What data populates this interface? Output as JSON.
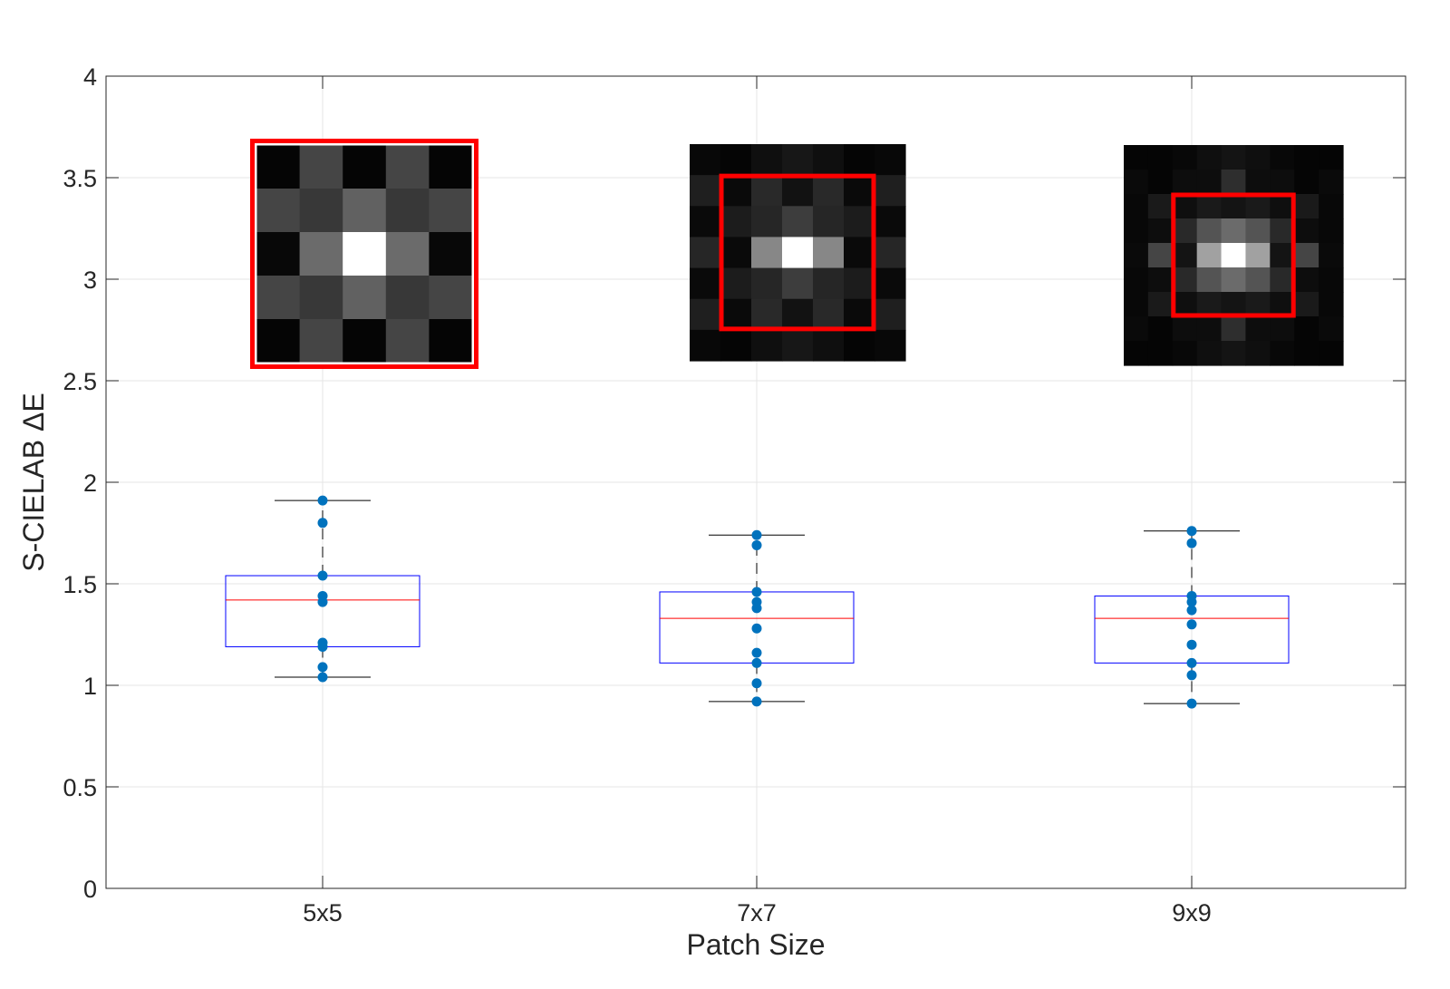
{
  "chart_data": {
    "type": "box",
    "xlabel": "Patch Size",
    "ylabel": "S-CIELAB ΔE",
    "ylim": [
      0,
      4
    ],
    "yticks": [
      0,
      0.5,
      1,
      1.5,
      2,
      2.5,
      3,
      3.5,
      4
    ],
    "ytick_labels": [
      "0",
      "0.5",
      "1",
      "1.5",
      "2",
      "2.5",
      "3",
      "3.5",
      "4"
    ],
    "grid": true,
    "categories": [
      "5x5",
      "7x7",
      "9x9"
    ],
    "boxes": [
      {
        "category": "5x5",
        "q1": 1.19,
        "median": 1.42,
        "q3": 1.54,
        "whisker_low": 1.04,
        "whisker_high": 1.91,
        "points": [
          1.91,
          1.8,
          1.54,
          1.44,
          1.41,
          1.21,
          1.19,
          1.09,
          1.04
        ]
      },
      {
        "category": "7x7",
        "q1": 1.11,
        "median": 1.33,
        "q3": 1.46,
        "whisker_low": 0.92,
        "whisker_high": 1.74,
        "points": [
          1.74,
          1.69,
          1.46,
          1.41,
          1.38,
          1.28,
          1.16,
          1.11,
          1.01,
          0.92
        ]
      },
      {
        "category": "9x9",
        "q1": 1.11,
        "median": 1.33,
        "q3": 1.44,
        "whisker_low": 0.91,
        "whisker_high": 1.76,
        "points": [
          1.76,
          1.7,
          1.44,
          1.41,
          1.37,
          1.3,
          1.2,
          1.11,
          1.05,
          0.91
        ]
      }
    ],
    "patches": [
      {
        "category": "5x5",
        "size": 5,
        "highlight_size": 5,
        "levels": [
          [
            0.02,
            0.27,
            0.02,
            0.27,
            0.02
          ],
          [
            0.27,
            0.22,
            0.38,
            0.22,
            0.27
          ],
          [
            0.03,
            0.42,
            1.0,
            0.42,
            0.03
          ],
          [
            0.27,
            0.22,
            0.38,
            0.22,
            0.27
          ],
          [
            0.02,
            0.27,
            0.02,
            0.27,
            0.02
          ]
        ]
      },
      {
        "category": "7x7",
        "size": 7,
        "highlight_size": 5,
        "levels": [
          [
            0.03,
            0.02,
            0.06,
            0.09,
            0.06,
            0.02,
            0.03
          ],
          [
            0.12,
            0.04,
            0.16,
            0.07,
            0.16,
            0.04,
            0.12
          ],
          [
            0.04,
            0.11,
            0.15,
            0.24,
            0.15,
            0.11,
            0.04
          ],
          [
            0.15,
            0.04,
            0.53,
            1.0,
            0.53,
            0.04,
            0.15
          ],
          [
            0.04,
            0.11,
            0.15,
            0.24,
            0.15,
            0.11,
            0.04
          ],
          [
            0.12,
            0.04,
            0.16,
            0.07,
            0.16,
            0.04,
            0.12
          ],
          [
            0.03,
            0.02,
            0.06,
            0.09,
            0.06,
            0.02,
            0.03
          ]
        ]
      },
      {
        "category": "9x9",
        "size": 9,
        "highlight_size": 5,
        "levels": [
          [
            0.02,
            0.02,
            0.03,
            0.06,
            0.08,
            0.06,
            0.03,
            0.02,
            0.02
          ],
          [
            0.04,
            0.02,
            0.05,
            0.05,
            0.18,
            0.05,
            0.05,
            0.02,
            0.04
          ],
          [
            0.03,
            0.1,
            0.06,
            0.1,
            0.08,
            0.1,
            0.06,
            0.1,
            0.03
          ],
          [
            0.03,
            0.05,
            0.16,
            0.33,
            0.42,
            0.33,
            0.16,
            0.05,
            0.03
          ],
          [
            0.04,
            0.27,
            0.08,
            0.63,
            1.0,
            0.63,
            0.08,
            0.27,
            0.04
          ],
          [
            0.03,
            0.05,
            0.16,
            0.33,
            0.42,
            0.33,
            0.16,
            0.05,
            0.03
          ],
          [
            0.03,
            0.1,
            0.06,
            0.1,
            0.08,
            0.1,
            0.06,
            0.1,
            0.03
          ],
          [
            0.04,
            0.02,
            0.05,
            0.05,
            0.18,
            0.05,
            0.05,
            0.02,
            0.04
          ],
          [
            0.02,
            0.02,
            0.03,
            0.06,
            0.08,
            0.06,
            0.03,
            0.02,
            0.02
          ]
        ]
      }
    ],
    "colors": {
      "box_edge": "#0000ff",
      "median": "#ff0000",
      "whisker": "#000000",
      "points": "#0072bd",
      "highlight": "#ff0000",
      "grid": "#e6e6e6",
      "axis": "#262626"
    }
  }
}
